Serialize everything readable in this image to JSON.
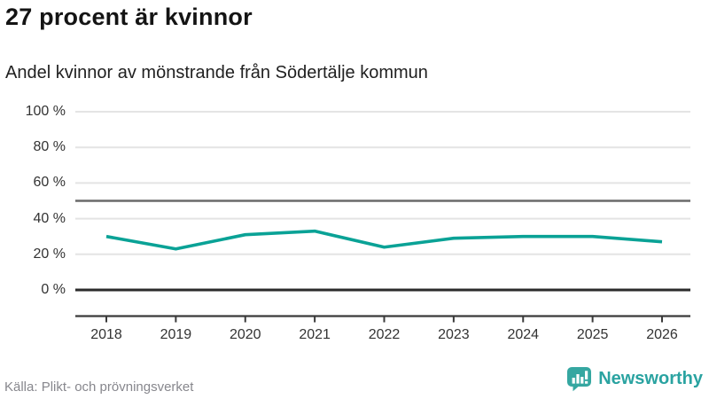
{
  "header": {
    "title": "27 procent är kvinnor",
    "subtitle": "Andel kvinnor av mönstrande från Södertälje kommun"
  },
  "chart_data": {
    "type": "line",
    "title": "27 procent är kvinnor",
    "subtitle": "Andel kvinnor av mönstrande från Södertälje kommun",
    "categories": [
      "2018",
      "2019",
      "2020",
      "2021",
      "2022",
      "2023",
      "2024",
      "2025",
      "2026"
    ],
    "series": [
      {
        "name": "Andel kvinnor av mönstrande",
        "values": [
          30,
          23,
          31,
          33,
          24,
          29,
          30,
          30,
          27
        ],
        "color": "#0aa296"
      }
    ],
    "unit": "%",
    "ylim": [
      0,
      100
    ],
    "yticks": [
      {
        "value": 100,
        "label": "100 %"
      },
      {
        "value": 80,
        "label": "80 %"
      },
      {
        "value": 60,
        "label": "60 %"
      },
      {
        "value": 40,
        "label": "40 %"
      },
      {
        "value": 20,
        "label": "20 %"
      },
      {
        "value": 0,
        "label": "0 %"
      }
    ],
    "reference_lines": [
      {
        "value": 50,
        "color": "#6a6a6a"
      },
      {
        "value": 0,
        "color": "#2b2b2b"
      }
    ],
    "grid": true,
    "legend": false
  },
  "colors": {
    "accent_teal": "#0aa296",
    "logo_teal": "#35a7a1",
    "logo_text_teal": "#2aa3a1",
    "grid_light": "#e4e4e4",
    "axis_dark": "#3a3a3a",
    "text_dark": "#141414",
    "text_gray": "#87878d"
  },
  "footer": {
    "source": "Källa: Plikt- och prövningsverket",
    "brand": "Newsworthy"
  }
}
